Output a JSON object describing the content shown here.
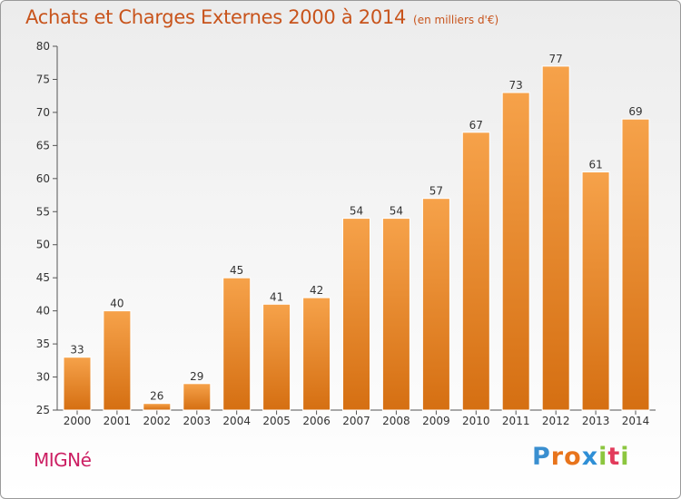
{
  "title": "Achats et Charges Externes 2000 à 2014",
  "unit": "(en milliers d'€)",
  "commune": "MIGNé",
  "logo": {
    "letters": [
      "P",
      "r",
      "o",
      "x",
      "i",
      "t",
      "i"
    ],
    "colors": [
      "#3a8fd0",
      "#e8741c",
      "#e8741c",
      "#2f8fd6",
      "#8cc63f",
      "#e23b5b",
      "#8cc63f"
    ]
  },
  "colors": {
    "bar": "#f0912f",
    "text": "#c8541c",
    "commune": "#cc1f63"
  },
  "chart_data": {
    "type": "bar",
    "categories": [
      "2000",
      "2001",
      "2002",
      "2003",
      "2004",
      "2005",
      "2006",
      "2007",
      "2008",
      "2009",
      "2010",
      "2011",
      "2012",
      "2013",
      "2014"
    ],
    "values": [
      33,
      40,
      26,
      29,
      45,
      41,
      42,
      54,
      54,
      57,
      67,
      73,
      77,
      61,
      69
    ],
    "ylim": [
      25,
      80
    ],
    "yticks": [
      25,
      30,
      35,
      40,
      45,
      50,
      55,
      60,
      65,
      70,
      75,
      80
    ],
    "grid": false
  }
}
